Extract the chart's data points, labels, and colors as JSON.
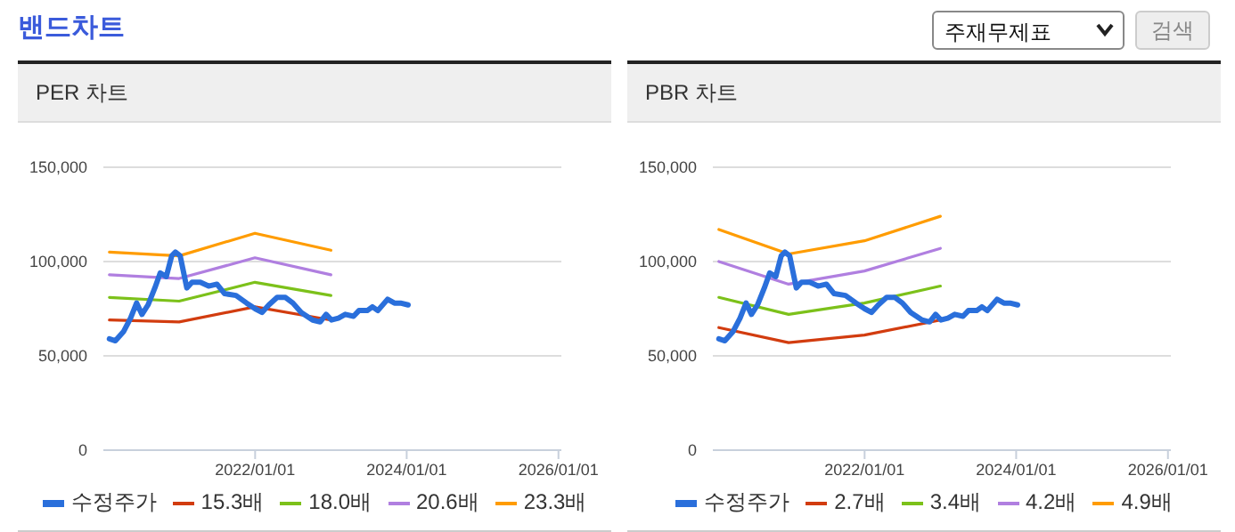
{
  "chart_data": [
    {
      "type": "line",
      "title": "PER 차트",
      "annotations": [
        "밴드차트",
        "주재무제표",
        "검색"
      ],
      "xlim": [
        "2020-01-01",
        "2026-01-15"
      ],
      "xticks": [
        {
          "value": "2022-01-01",
          "label": "2022/01/01"
        },
        {
          "value": "2024-01-01",
          "label": "2024/01/01"
        },
        {
          "value": "2026-01-01",
          "label": "2026/01/01"
        }
      ],
      "ylim": [
        0,
        150000
      ],
      "yticks": [
        {
          "value": 0,
          "label": "0"
        },
        {
          "value": 50000,
          "label": "50,000"
        },
        {
          "value": 100000,
          "label": "100,000"
        },
        {
          "value": 150000,
          "label": "150,000"
        }
      ],
      "grid": "y",
      "legend": "bottom",
      "marker": "none",
      "line_style": "solid",
      "series": [
        {
          "name": "수정주가",
          "color": "#2a6fdb",
          "x": [
            "2020-01-30",
            "2020-02-28",
            "2020-04-08",
            "2020-05-11",
            "2020-06-09",
            "2020-07-05",
            "2020-08-03",
            "2020-09-05",
            "2020-10-01",
            "2020-10-30",
            "2020-11-25",
            "2020-12-13",
            "2021-01-05",
            "2021-02-06",
            "2021-03-03",
            "2021-04-12",
            "2021-05-22",
            "2021-07-01",
            "2021-08-07",
            "2021-10-01",
            "2021-11-21",
            "2022-01-01",
            "2022-02-03",
            "2022-03-08",
            "2022-04-17",
            "2022-05-27",
            "2022-07-02",
            "2022-08-11",
            "2022-10-05",
            "2022-11-10",
            "2022-12-09",
            "2023-01-04",
            "2023-02-06",
            "2023-03-11",
            "2023-04-20",
            "2023-05-16",
            "2023-06-25",
            "2023-07-20",
            "2023-08-15",
            "2023-10-01",
            "2023-11-03",
            "2023-12-02",
            "2024-01-08"
          ],
          "values": [
            59000,
            58000,
            63000,
            70000,
            78000,
            72000,
            77000,
            86000,
            94000,
            92000,
            103000,
            105000,
            103000,
            86000,
            89000,
            89000,
            87000,
            88000,
            83000,
            82000,
            78000,
            75000,
            73000,
            77000,
            81000,
            81000,
            78000,
            73000,
            69000,
            68000,
            72000,
            69000,
            70000,
            72000,
            71000,
            74000,
            74000,
            76000,
            74000,
            80000,
            78000,
            78000,
            77000
          ]
        },
        {
          "name": "15.3배",
          "color": "#d23c0f",
          "x": [
            "2020-01-30",
            "2020-12-31",
            "2021-12-31",
            "2023-01-01"
          ],
          "values": [
            69000,
            68000,
            76000,
            69000
          ]
        },
        {
          "name": "18.0배",
          "color": "#7cc11a",
          "x": [
            "2020-01-30",
            "2020-12-31",
            "2021-12-31",
            "2023-01-01"
          ],
          "values": [
            81000,
            79000,
            89000,
            82000
          ]
        },
        {
          "name": "20.6배",
          "color": "#b07fe0",
          "x": [
            "2020-01-30",
            "2020-12-31",
            "2021-12-31",
            "2023-01-01"
          ],
          "values": [
            93000,
            91000,
            102000,
            93000
          ]
        },
        {
          "name": "23.3배",
          "color": "#ff9c00",
          "x": [
            "2020-01-30",
            "2020-12-31",
            "2021-12-31",
            "2023-01-01"
          ],
          "values": [
            105000,
            103000,
            115000,
            106000
          ]
        }
      ]
    },
    {
      "type": "line",
      "title": "PBR 차트",
      "xlim": [
        "2020-01-01",
        "2026-01-15"
      ],
      "xticks": [
        {
          "value": "2022-01-01",
          "label": "2022/01/01"
        },
        {
          "value": "2024-01-01",
          "label": "2024/01/01"
        },
        {
          "value": "2026-01-01",
          "label": "2026/01/01"
        }
      ],
      "ylim": [
        0,
        150000
      ],
      "yticks": [
        {
          "value": 0,
          "label": "0"
        },
        {
          "value": 50000,
          "label": "50,000"
        },
        {
          "value": 100000,
          "label": "100,000"
        },
        {
          "value": 150000,
          "label": "150,000"
        }
      ],
      "grid": "y",
      "legend": "bottom",
      "marker": "none",
      "line_style": "solid",
      "series": [
        {
          "name": "수정주가",
          "color": "#2a6fdb",
          "x": [
            "2020-01-30",
            "2020-02-28",
            "2020-04-08",
            "2020-05-11",
            "2020-06-09",
            "2020-07-05",
            "2020-08-03",
            "2020-09-05",
            "2020-10-01",
            "2020-10-30",
            "2020-11-25",
            "2020-12-13",
            "2021-01-05",
            "2021-02-06",
            "2021-03-03",
            "2021-04-12",
            "2021-05-22",
            "2021-07-01",
            "2021-08-07",
            "2021-10-01",
            "2021-11-21",
            "2022-01-01",
            "2022-02-03",
            "2022-03-08",
            "2022-04-17",
            "2022-05-27",
            "2022-07-02",
            "2022-08-11",
            "2022-10-05",
            "2022-11-10",
            "2022-12-09",
            "2023-01-04",
            "2023-02-06",
            "2023-03-11",
            "2023-04-20",
            "2023-05-16",
            "2023-06-25",
            "2023-07-20",
            "2023-08-15",
            "2023-10-01",
            "2023-11-03",
            "2023-12-02",
            "2024-01-08"
          ],
          "values": [
            59000,
            58000,
            63000,
            70000,
            78000,
            72000,
            77000,
            86000,
            94000,
            92000,
            103000,
            105000,
            103000,
            86000,
            89000,
            89000,
            87000,
            88000,
            83000,
            82000,
            78000,
            75000,
            73000,
            77000,
            81000,
            81000,
            78000,
            73000,
            69000,
            68000,
            72000,
            69000,
            70000,
            72000,
            71000,
            74000,
            74000,
            76000,
            74000,
            80000,
            78000,
            78000,
            77000
          ]
        },
        {
          "name": "2.7배",
          "color": "#d23c0f",
          "x": [
            "2020-01-30",
            "2020-12-31",
            "2021-12-31",
            "2023-01-01"
          ],
          "values": [
            65000,
            57000,
            61000,
            69000
          ]
        },
        {
          "name": "3.4배",
          "color": "#7cc11a",
          "x": [
            "2020-01-30",
            "2020-12-31",
            "2021-12-31",
            "2023-01-01"
          ],
          "values": [
            81000,
            72000,
            78000,
            87000
          ]
        },
        {
          "name": "4.2배",
          "color": "#b07fe0",
          "x": [
            "2020-01-30",
            "2020-12-31",
            "2021-12-31",
            "2023-01-01"
          ],
          "values": [
            100000,
            88000,
            95000,
            107000
          ]
        },
        {
          "name": "4.9배",
          "color": "#ff9c00",
          "x": [
            "2020-01-30",
            "2020-12-31",
            "2021-12-31",
            "2023-01-01"
          ],
          "values": [
            117000,
            104000,
            111000,
            124000
          ]
        }
      ]
    }
  ]
}
